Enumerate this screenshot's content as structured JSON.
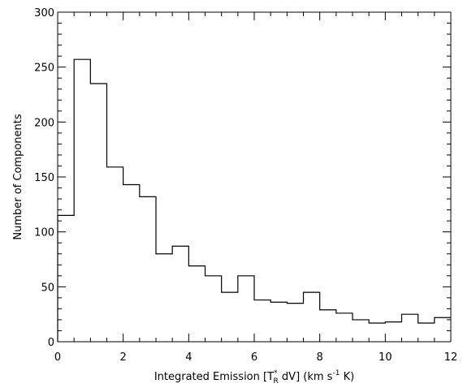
{
  "chart_data": {
    "type": "histogram",
    "xlabel": "Integrated Emission [T_R^* dV] (km s^-1 K)",
    "ylabel": "Number of Components",
    "xlim": [
      0,
      12
    ],
    "ylim": [
      0,
      300
    ],
    "x_ticks": [
      0,
      2,
      4,
      6,
      8,
      10,
      12
    ],
    "y_ticks": [
      0,
      50,
      100,
      150,
      200,
      250,
      300
    ],
    "bin_width": 0.5,
    "bin_edges": [
      0,
      0.5,
      1,
      1.5,
      2,
      2.5,
      3,
      3.5,
      4,
      4.5,
      5,
      5.5,
      6,
      6.5,
      7,
      7.5,
      8,
      8.5,
      9,
      9.5,
      10,
      10.5,
      11,
      11.5,
      12
    ],
    "values": [
      115,
      257,
      235,
      159,
      143,
      132,
      80,
      87,
      69,
      60,
      45,
      60,
      38,
      36,
      35,
      45,
      29,
      26,
      20,
      17,
      18,
      25,
      17,
      22
    ],
    "grid": false,
    "line_color": "#000000"
  }
}
